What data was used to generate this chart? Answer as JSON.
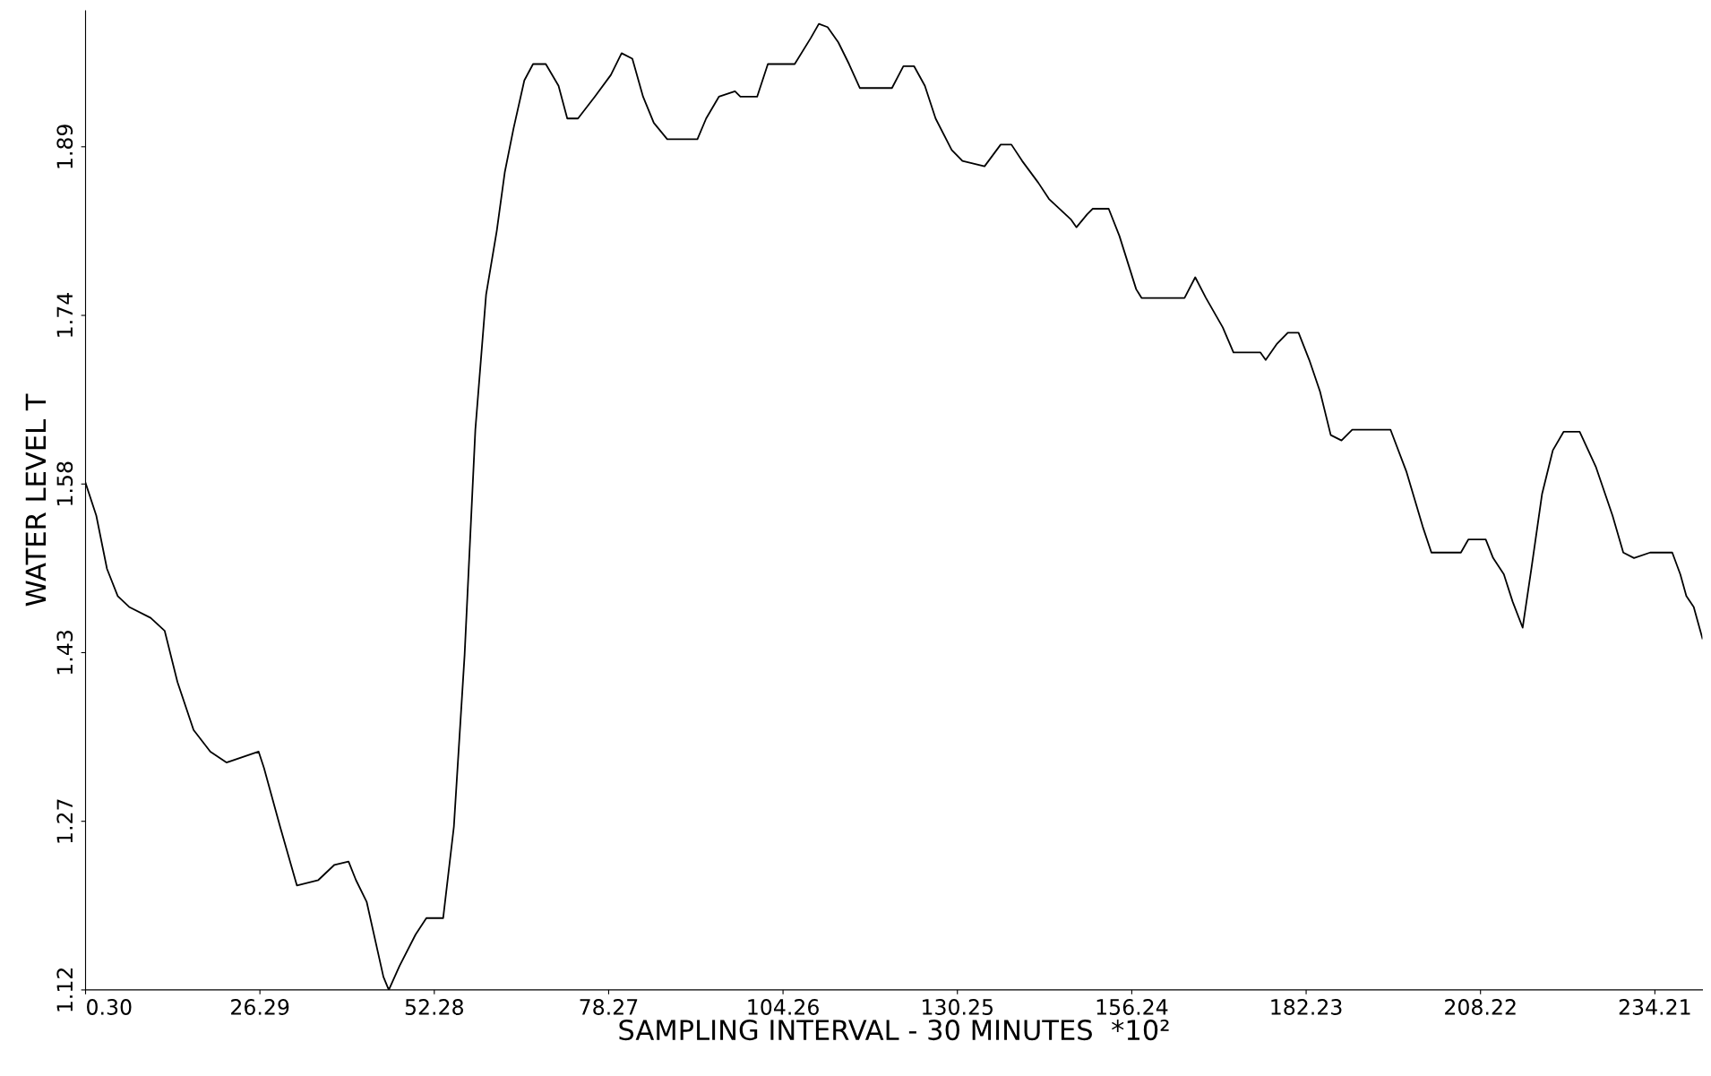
{
  "chart_data": {
    "type": "line",
    "xlabel": "SAMPLING INTERVAL - 30 MINUTES  *10²",
    "ylabel": "WATER LEVEL T",
    "x": [
      0.3,
      1.9,
      3.5,
      5.1,
      6.8,
      10.0,
      12.1,
      14.0,
      16.4,
      18.9,
      21.3,
      26.1,
      26.9,
      29.3,
      31.8,
      35.0,
      37.4,
      39.5,
      40.6,
      42.2,
      44.7,
      45.5,
      47.1,
      49.5,
      51.1,
      53.6,
      55.2,
      56.8,
      58.4,
      60.0,
      61.6,
      62.8,
      64.1,
      65.7,
      67.0,
      68.9,
      70.8,
      72.1,
      73.7,
      76.2,
      78.6,
      80.2,
      81.8,
      83.4,
      85.0,
      87.0,
      91.5,
      92.8,
      94.7,
      97.1,
      97.9,
      100.4,
      102.0,
      106.0,
      108.4,
      109.6,
      110.9,
      112.5,
      114.1,
      115.7,
      120.5,
      122.2,
      123.8,
      125.4,
      127.0,
      129.4,
      131.0,
      134.3,
      136.7,
      138.3,
      139.9,
      142.3,
      143.9,
      147.2,
      148.0,
      149.6,
      150.4,
      152.8,
      154.4,
      156.9,
      157.7,
      164.1,
      165.7,
      167.3,
      169.8,
      171.4,
      175.4,
      176.2,
      177.9,
      179.5,
      181.1,
      182.7,
      184.3,
      185.9,
      187.5,
      189.1,
      189.9,
      194.8,
      197.2,
      199.6,
      200.9,
      205.3,
      206.4,
      209.0,
      210.1,
      211.7,
      213.0,
      214.5,
      215.8,
      217.4,
      219.0,
      220.6,
      223.0,
      225.4,
      227.9,
      229.5,
      231.1,
      233.5,
      236.8,
      238.0,
      238.9,
      240.0,
      241.3
    ],
    "series": [
      {
        "color": "#000000",
        "values": [
          1.586,
          1.556,
          1.507,
          1.482,
          1.472,
          1.462,
          1.45,
          1.403,
          1.359,
          1.339,
          1.329,
          1.339,
          1.324,
          1.27,
          1.216,
          1.221,
          1.235,
          1.238,
          1.221,
          1.201,
          1.132,
          1.12,
          1.142,
          1.171,
          1.186,
          1.186,
          1.27,
          1.428,
          1.635,
          1.759,
          1.818,
          1.872,
          1.912,
          1.956,
          1.971,
          1.971,
          1.951,
          1.921,
          1.921,
          1.941,
          1.961,
          1.981,
          1.976,
          1.941,
          1.917,
          1.902,
          1.902,
          1.921,
          1.941,
          1.946,
          1.941,
          1.941,
          1.971,
          1.971,
          1.995,
          2.008,
          2.005,
          1.991,
          1.971,
          1.949,
          1.949,
          1.969,
          1.969,
          1.951,
          1.921,
          1.892,
          1.882,
          1.877,
          1.897,
          1.897,
          1.882,
          1.862,
          1.847,
          1.828,
          1.821,
          1.833,
          1.838,
          1.838,
          1.813,
          1.764,
          1.756,
          1.756,
          1.775,
          1.756,
          1.729,
          1.706,
          1.706,
          1.699,
          1.714,
          1.724,
          1.724,
          1.699,
          1.67,
          1.63,
          1.625,
          1.635,
          1.635,
          1.635,
          1.596,
          1.546,
          1.522,
          1.522,
          1.534,
          1.534,
          1.517,
          1.502,
          1.477,
          1.453,
          1.507,
          1.576,
          1.616,
          1.633,
          1.633,
          1.601,
          1.556,
          1.522,
          1.517,
          1.522,
          1.522,
          1.502,
          1.482,
          1.472,
          1.443
        ]
      }
    ],
    "xlim": [
      0.3,
      241.3
    ],
    "ylim": [
      1.12,
      2.02
    ],
    "xticks": [
      {
        "value": 0.3,
        "label": "0.30"
      },
      26.29,
      52.28,
      78.27,
      104.26,
      130.25,
      156.24,
      182.23,
      208.22,
      234.21
    ],
    "yticks": [
      1.12,
      {
        "value": 1.275,
        "label": "1.27"
      },
      1.43,
      {
        "value": 1.585,
        "label": "1.58"
      },
      1.74,
      {
        "value": 1.895,
        "label": "1.89"
      }
    ],
    "grid": false,
    "legend": false,
    "marker": "none",
    "line_style": "solid"
  }
}
